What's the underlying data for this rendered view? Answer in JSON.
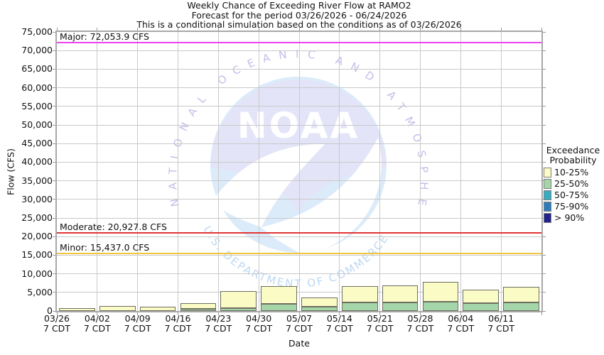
{
  "chart_data": {
    "type": "bar",
    "stacked": true,
    "title": "Weekly Chance of Exceeding River Flow at RAMO2",
    "subtitle": "Forecast for the period 03/26/2026 - 06/24/2026",
    "note": "This is a conditional simulation based on the conditions as of 03/26/2026",
    "xlabel": "Date",
    "ylabel": "Flow (CFS)",
    "ylim": [
      0,
      75000
    ],
    "ytick_step": 5000,
    "ytick_labels": [
      "0",
      "5,000",
      "10,000",
      "15,000",
      "20,000",
      "25,000",
      "30,000",
      "35,000",
      "40,000",
      "45,000",
      "50,000",
      "55,000",
      "60,000",
      "65,000",
      "70,000",
      "75,000"
    ],
    "categories": [
      "03/26",
      "04/02",
      "04/09",
      "04/16",
      "04/23",
      "04/30",
      "05/07",
      "05/14",
      "05/21",
      "05/28",
      "06/04",
      "06/11"
    ],
    "category_sublabel": "7 CDT",
    "grid": true,
    "legend_position": "right",
    "legend_title": [
      "Exceedance",
      "Probability"
    ],
    "legend_entries": [
      {
        "label": "10-25%",
        "color": "#fbfbc6"
      },
      {
        "label": "25-50%",
        "color": "#a5d6a9"
      },
      {
        "label": "50-75%",
        "color": "#37adc1"
      },
      {
        "label": "75-90%",
        "color": "#2d7dbd"
      },
      {
        "label": "> 90%",
        "color": "#22228e"
      }
    ],
    "series": [
      {
        "name": "10-25%",
        "color": "#fbfbc6",
        "band_top_cfs": [
          800,
          1300,
          1100,
          2100,
          5400,
          6600,
          3700,
          6700,
          6900,
          7900,
          5800,
          6500
        ]
      },
      {
        "name": "25-50%",
        "color": "#a5d6a9",
        "band_top_cfs": [
          0,
          0,
          0,
          600,
          800,
          2000,
          1200,
          2300,
          2300,
          2400,
          2100,
          2300
        ]
      }
    ],
    "thresholds": [
      {
        "name": "Major",
        "label": "Major: 72,053.9 CFS",
        "value_cfs": 72053.9,
        "color": "#ef40ee"
      },
      {
        "name": "Moderate",
        "label": "Moderate: 20,927.8 CFS",
        "value_cfs": 20927.8,
        "color": "#e23434"
      },
      {
        "name": "Minor",
        "label": "Minor: 15,437.0 CFS",
        "value_cfs": 15437.0,
        "color": "#eec73f"
      }
    ],
    "watermark": {
      "acronym": "NOAA",
      "ring_top": "NATIONAL OCEANIC AND ATMOSPHERIC ADMINISTRATION",
      "ring_bottom": "U.S. DEPARTMENT OF COMMERCE"
    }
  }
}
